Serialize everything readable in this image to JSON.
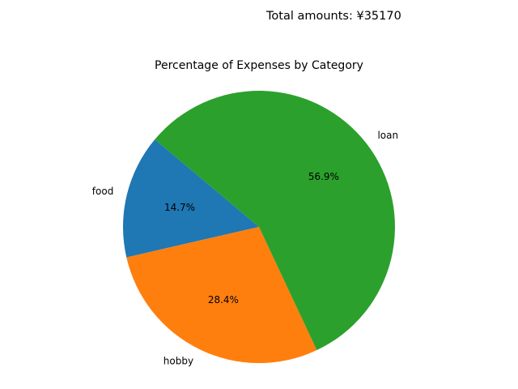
{
  "header": {
    "total_label": "Total amounts: ¥35170"
  },
  "chart_data": {
    "type": "pie",
    "title": "Percentage of Expenses by Category",
    "start_angle_deg": 140,
    "direction": "counterclockwise",
    "slices": [
      {
        "label": "food",
        "percent": 14.7,
        "pct_label": "14.7%",
        "color": "#1f77b4"
      },
      {
        "label": "hobby",
        "percent": 28.4,
        "pct_label": "28.4%",
        "color": "#ff7f0e"
      },
      {
        "label": "loan",
        "percent": 56.9,
        "pct_label": "56.9%",
        "color": "#2ca02c"
      }
    ]
  }
}
